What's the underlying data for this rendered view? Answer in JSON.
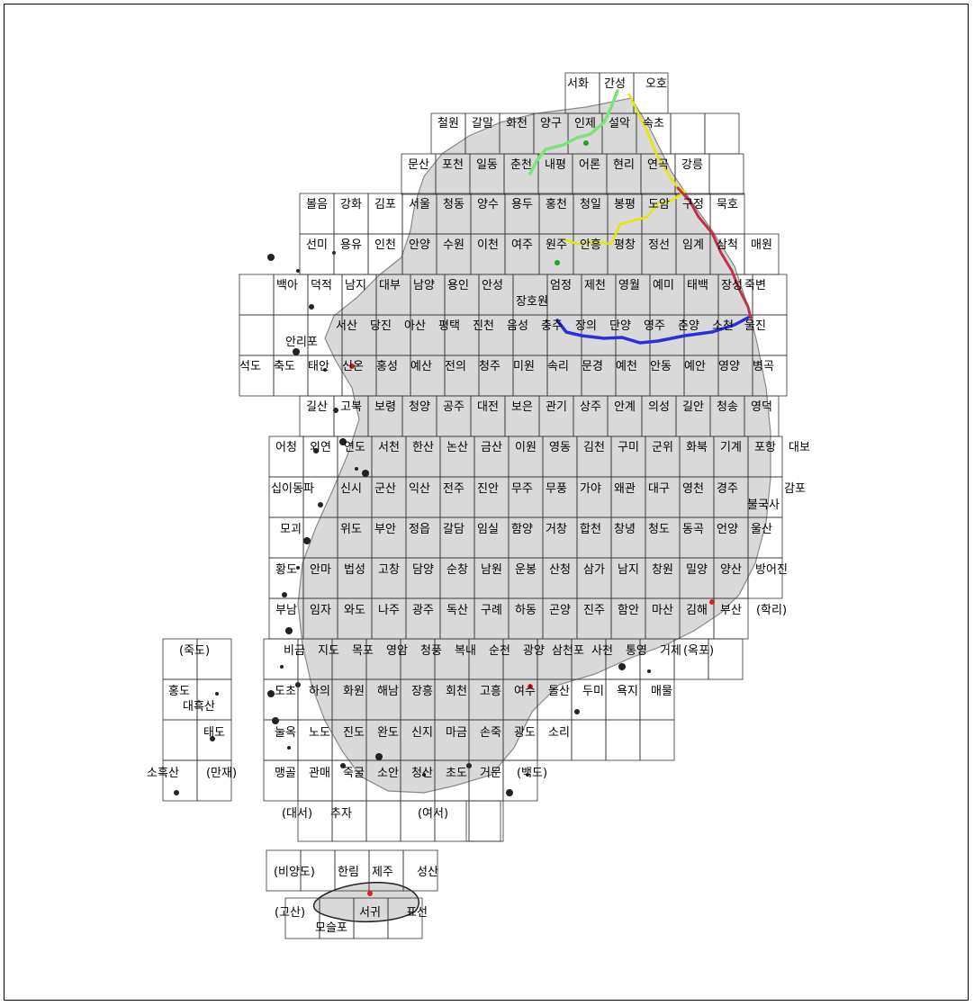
{
  "map": {
    "colors": {
      "land": "#d9d9d9",
      "grid": "#333333",
      "route_green": "#7ee07e",
      "route_yellow": "#e6e600",
      "route_red": "#c0304a",
      "route_blue": "#2d2de0",
      "marker_red": "#e02020",
      "marker_green": "#2aa02a"
    },
    "sheets": [
      "서화",
      "간성",
      "오호",
      "철원",
      "갈말",
      "화천",
      "양구",
      "인제",
      "설악",
      "속초",
      "문산",
      "포천",
      "일동",
      "춘천",
      "내평",
      "어론",
      "현리",
      "연곡",
      "강릉",
      "볼음",
      "강화",
      "김포",
      "서울",
      "청동",
      "양수",
      "용두",
      "홍천",
      "청일",
      "봉평",
      "도암",
      "구정",
      "묵호",
      "선미",
      "용유",
      "인천",
      "안양",
      "수원",
      "이천",
      "여주",
      "원주",
      "안흥",
      "평창",
      "정선",
      "임계",
      "삼척",
      "매원",
      "백아",
      "덕적",
      "남지",
      "대부",
      "남양",
      "용인",
      "안성",
      "장호원",
      "엄정",
      "제천",
      "영월",
      "예미",
      "태백",
      "장성",
      "죽변",
      "안리포",
      "서산",
      "당진",
      "아산",
      "평택",
      "진천",
      "음성",
      "충주",
      "장의",
      "단양",
      "영주",
      "춘양",
      "소천",
      "울진",
      "석도",
      "축도",
      "태안",
      "신온",
      "홍성",
      "예산",
      "전의",
      "청주",
      "미원",
      "속리",
      "문경",
      "예천",
      "안동",
      "예안",
      "영양",
      "병곡",
      "길산",
      "고북",
      "보령",
      "청양",
      "공주",
      "대전",
      "보은",
      "관기",
      "상주",
      "안계",
      "의성",
      "길안",
      "청송",
      "영덕",
      "어청",
      "외연",
      "연도",
      "서천",
      "한산",
      "논산",
      "금산",
      "이원",
      "영동",
      "김천",
      "구미",
      "군위",
      "화북",
      "기계",
      "포항",
      "대보",
      "십이동파",
      "신시",
      "군산",
      "익산",
      "전주",
      "진안",
      "무주",
      "무풍",
      "가야",
      "왜관",
      "대구",
      "영천",
      "경주",
      "감포",
      "불국사",
      "모괴",
      "위도",
      "부안",
      "정읍",
      "갈담",
      "임실",
      "함양",
      "거창",
      "합천",
      "창녕",
      "청도",
      "동곡",
      "언양",
      "울산",
      "황도",
      "안마",
      "법성",
      "고창",
      "담양",
      "순창",
      "남원",
      "운봉",
      "산청",
      "삼가",
      "남지",
      "창원",
      "밀양",
      "양산",
      "방어진",
      "부남",
      "임자",
      "와도",
      "나주",
      "광주",
      "독산",
      "구례",
      "하동",
      "곤양",
      "진주",
      "함안",
      "마산",
      "김해",
      "부산",
      "(학리)",
      "(죽도)",
      "비금",
      "지도",
      "목포",
      "영암",
      "청풍",
      "복내",
      "순천",
      "광양",
      "삼천포",
      "사천",
      "통영",
      "거제",
      "(옥포)",
      "홍도",
      "대흑산",
      "도초",
      "하의",
      "화원",
      "해남",
      "장흥",
      "회천",
      "고흥",
      "여수",
      "돌산",
      "두미",
      "욕지",
      "매물",
      "태도",
      "눌옥",
      "노도",
      "진도",
      "완도",
      "신지",
      "마금",
      "손죽",
      "광도",
      "소리",
      "소흑산",
      "(만재)",
      "맹골",
      "관매",
      "죽굴",
      "소안",
      "청산",
      "초도",
      "거문",
      "(백도)",
      "(대서)",
      "추자",
      "(여서)",
      "(비양도)",
      "한림",
      "제주",
      "성산",
      "(고산)",
      "모슬포",
      "서귀",
      "표선"
    ]
  }
}
